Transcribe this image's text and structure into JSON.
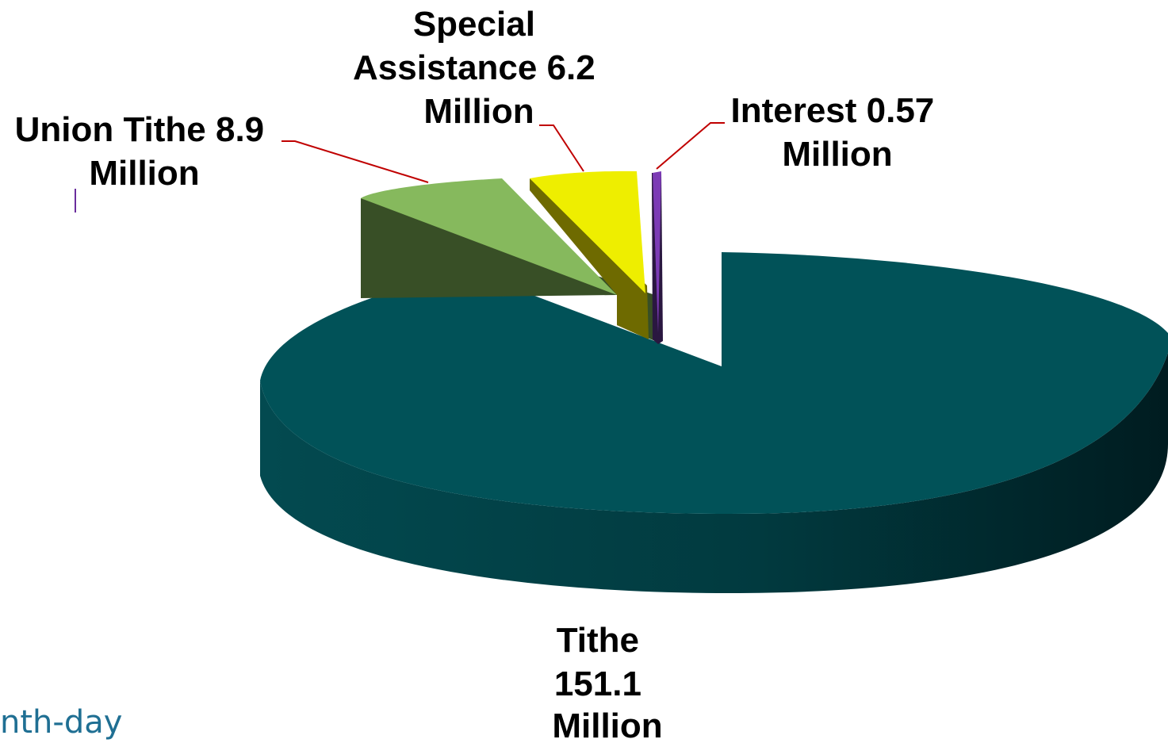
{
  "chart_data": {
    "type": "pie",
    "style": "3d-exploded",
    "unit": "Million",
    "slices": [
      {
        "name": "Tithe",
        "value": 151.1,
        "label_lines": [
          "Tithe",
          "151.1",
          "Million"
        ],
        "color": "#015258"
      },
      {
        "name": "Union Tithe",
        "value": 8.9,
        "label_lines": [
          "Union Tithe 8.9",
          "Million"
        ],
        "color": "#86b95d"
      },
      {
        "name": "Special Assistance",
        "value": 6.2,
        "label_lines": [
          "Special",
          "Assistance 6.2",
          "Million"
        ],
        "color": "#eeee00"
      },
      {
        "name": "Interest",
        "value": 0.57,
        "label_lines": [
          "Interest 0.57",
          "Million"
        ],
        "color": "#6a2d9d"
      }
    ],
    "leader_line_color": "#c00000"
  },
  "footer": {
    "text": "nth-day"
  }
}
